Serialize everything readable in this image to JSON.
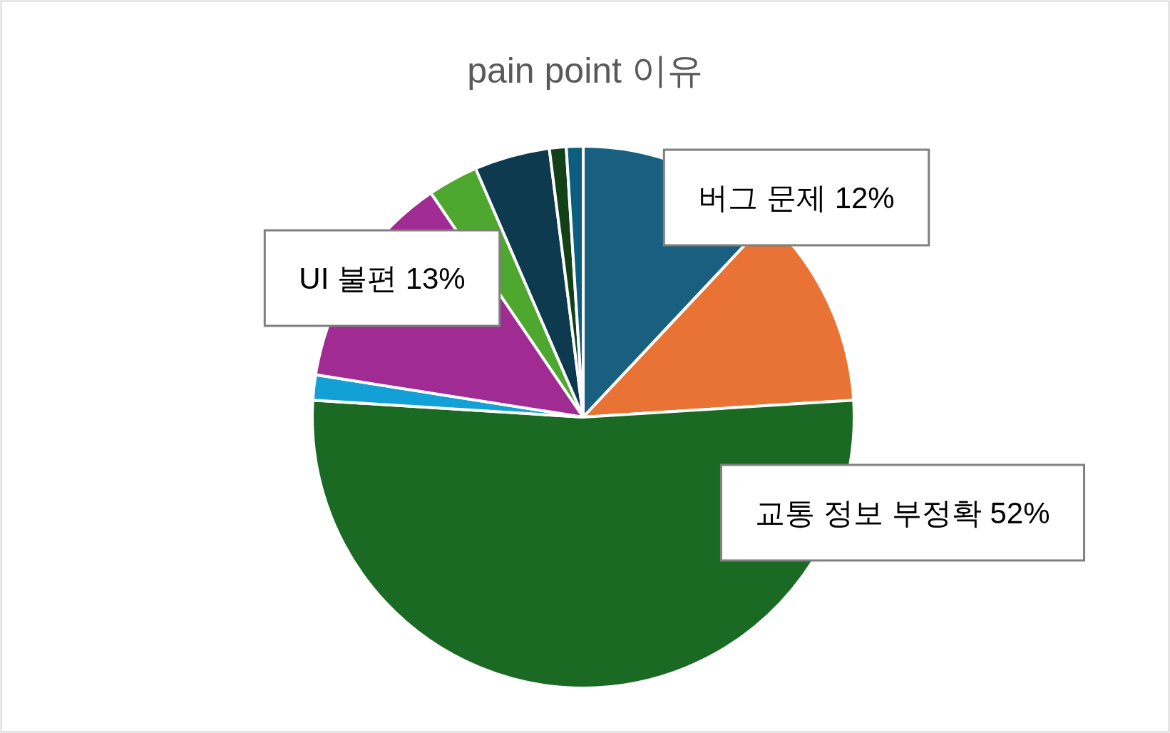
{
  "chart_data": {
    "type": "pie",
    "title": "pain point 이유",
    "categories": [
      "버그 문제",
      null,
      "교통 정보 부정확",
      null,
      "UI 불편",
      null,
      null,
      null,
      null
    ],
    "values": [
      12,
      12,
      52,
      1.5,
      13,
      3,
      4.5,
      1,
      1
    ],
    "colors": [
      "#185f80",
      "#e97334",
      "#1b6a24",
      "#12a0d6",
      "#a02b92",
      "#4ea72e",
      "#0e3a50",
      "#134117",
      "#0b5e80"
    ],
    "value_labels": [
      "12%",
      null,
      "52%",
      null,
      "13%",
      null,
      null,
      null,
      null
    ]
  }
}
